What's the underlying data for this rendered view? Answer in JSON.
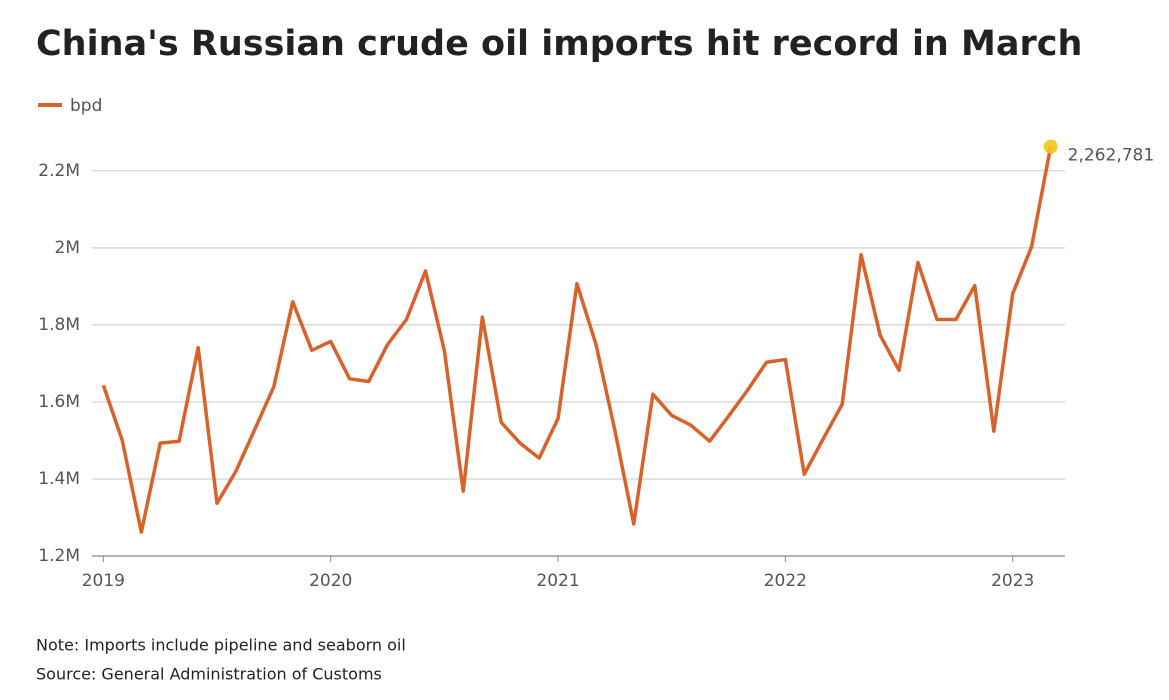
{
  "chart_data": {
    "type": "line",
    "title": "China's Russian crude oil imports hit record in March",
    "note": "Note: Imports include pipeline and seaborn oil",
    "source": "Source: General Administration of Customs",
    "x": [
      2019,
      2019.083,
      2019.167,
      2019.25,
      2019.333,
      2019.417,
      2019.5,
      2019.583,
      2019.667,
      2019.75,
      2019.833,
      2019.917,
      2020,
      2020.083,
      2020.167,
      2020.25,
      2020.333,
      2020.417,
      2020.5,
      2020.583,
      2020.667,
      2020.75,
      2020.833,
      2020.917,
      2021,
      2021.083,
      2021.167,
      2021.25,
      2021.333,
      2021.417,
      2021.5,
      2021.583,
      2021.667,
      2021.75,
      2021.833,
      2021.917,
      2022,
      2022.083,
      2022.167,
      2022.25,
      2022.333,
      2022.417,
      2022.5,
      2022.583,
      2022.667,
      2022.75,
      2022.833,
      2022.917,
      2023,
      2023.083,
      2023.167
    ],
    "series": [
      {
        "name": "bpd",
        "color": "#d9622b",
        "values": [
          1643000,
          1500000,
          1262000,
          1493000,
          1498000,
          1741000,
          1337000,
          1420000,
          1530000,
          1640000,
          1860000,
          1734000,
          1757000,
          1660000,
          1653000,
          1749000,
          1814000,
          1940000,
          1733000,
          1368000,
          1820000,
          1547000,
          1493000,
          1454000,
          1557000,
          1907000,
          1749000,
          1526000,
          1283000,
          1620000,
          1565000,
          1540000,
          1498000,
          1563000,
          1630000,
          1703000,
          1710000,
          1412000,
          1505000,
          1594000,
          1982000,
          1773000,
          1682000,
          1962000,
          1814000,
          1814000,
          1902000,
          1524000,
          1881000,
          2003000,
          2262781
        ],
        "value_labels": [
          null,
          null,
          null,
          null,
          null,
          null,
          null,
          null,
          null,
          null,
          null,
          null,
          null,
          null,
          null,
          null,
          null,
          null,
          null,
          null,
          null,
          null,
          null,
          null,
          null,
          null,
          null,
          null,
          null,
          null,
          null,
          null,
          null,
          null,
          null,
          null,
          null,
          null,
          null,
          null,
          null,
          null,
          null,
          null,
          null,
          null,
          null,
          null,
          null,
          null,
          "2,262,781"
        ]
      }
    ],
    "highlight_color": "#f5c518",
    "xlim": [
      2018.95,
      2023.23
    ],
    "xticks": [
      2019,
      2020,
      2021,
      2022,
      2023
    ],
    "ylim": [
      1200000,
      2280000
    ],
    "yticks": [
      {
        "value": 1200000,
        "label": "1.2M"
      },
      {
        "value": 1400000,
        "label": "1.4M"
      },
      {
        "value": 1600000,
        "label": "1.6M"
      },
      {
        "value": 1800000,
        "label": "1.8M"
      },
      {
        "value": 2000000,
        "label": "2M"
      },
      {
        "value": 2200000,
        "label": "2.2M"
      }
    ],
    "grid": true
  }
}
